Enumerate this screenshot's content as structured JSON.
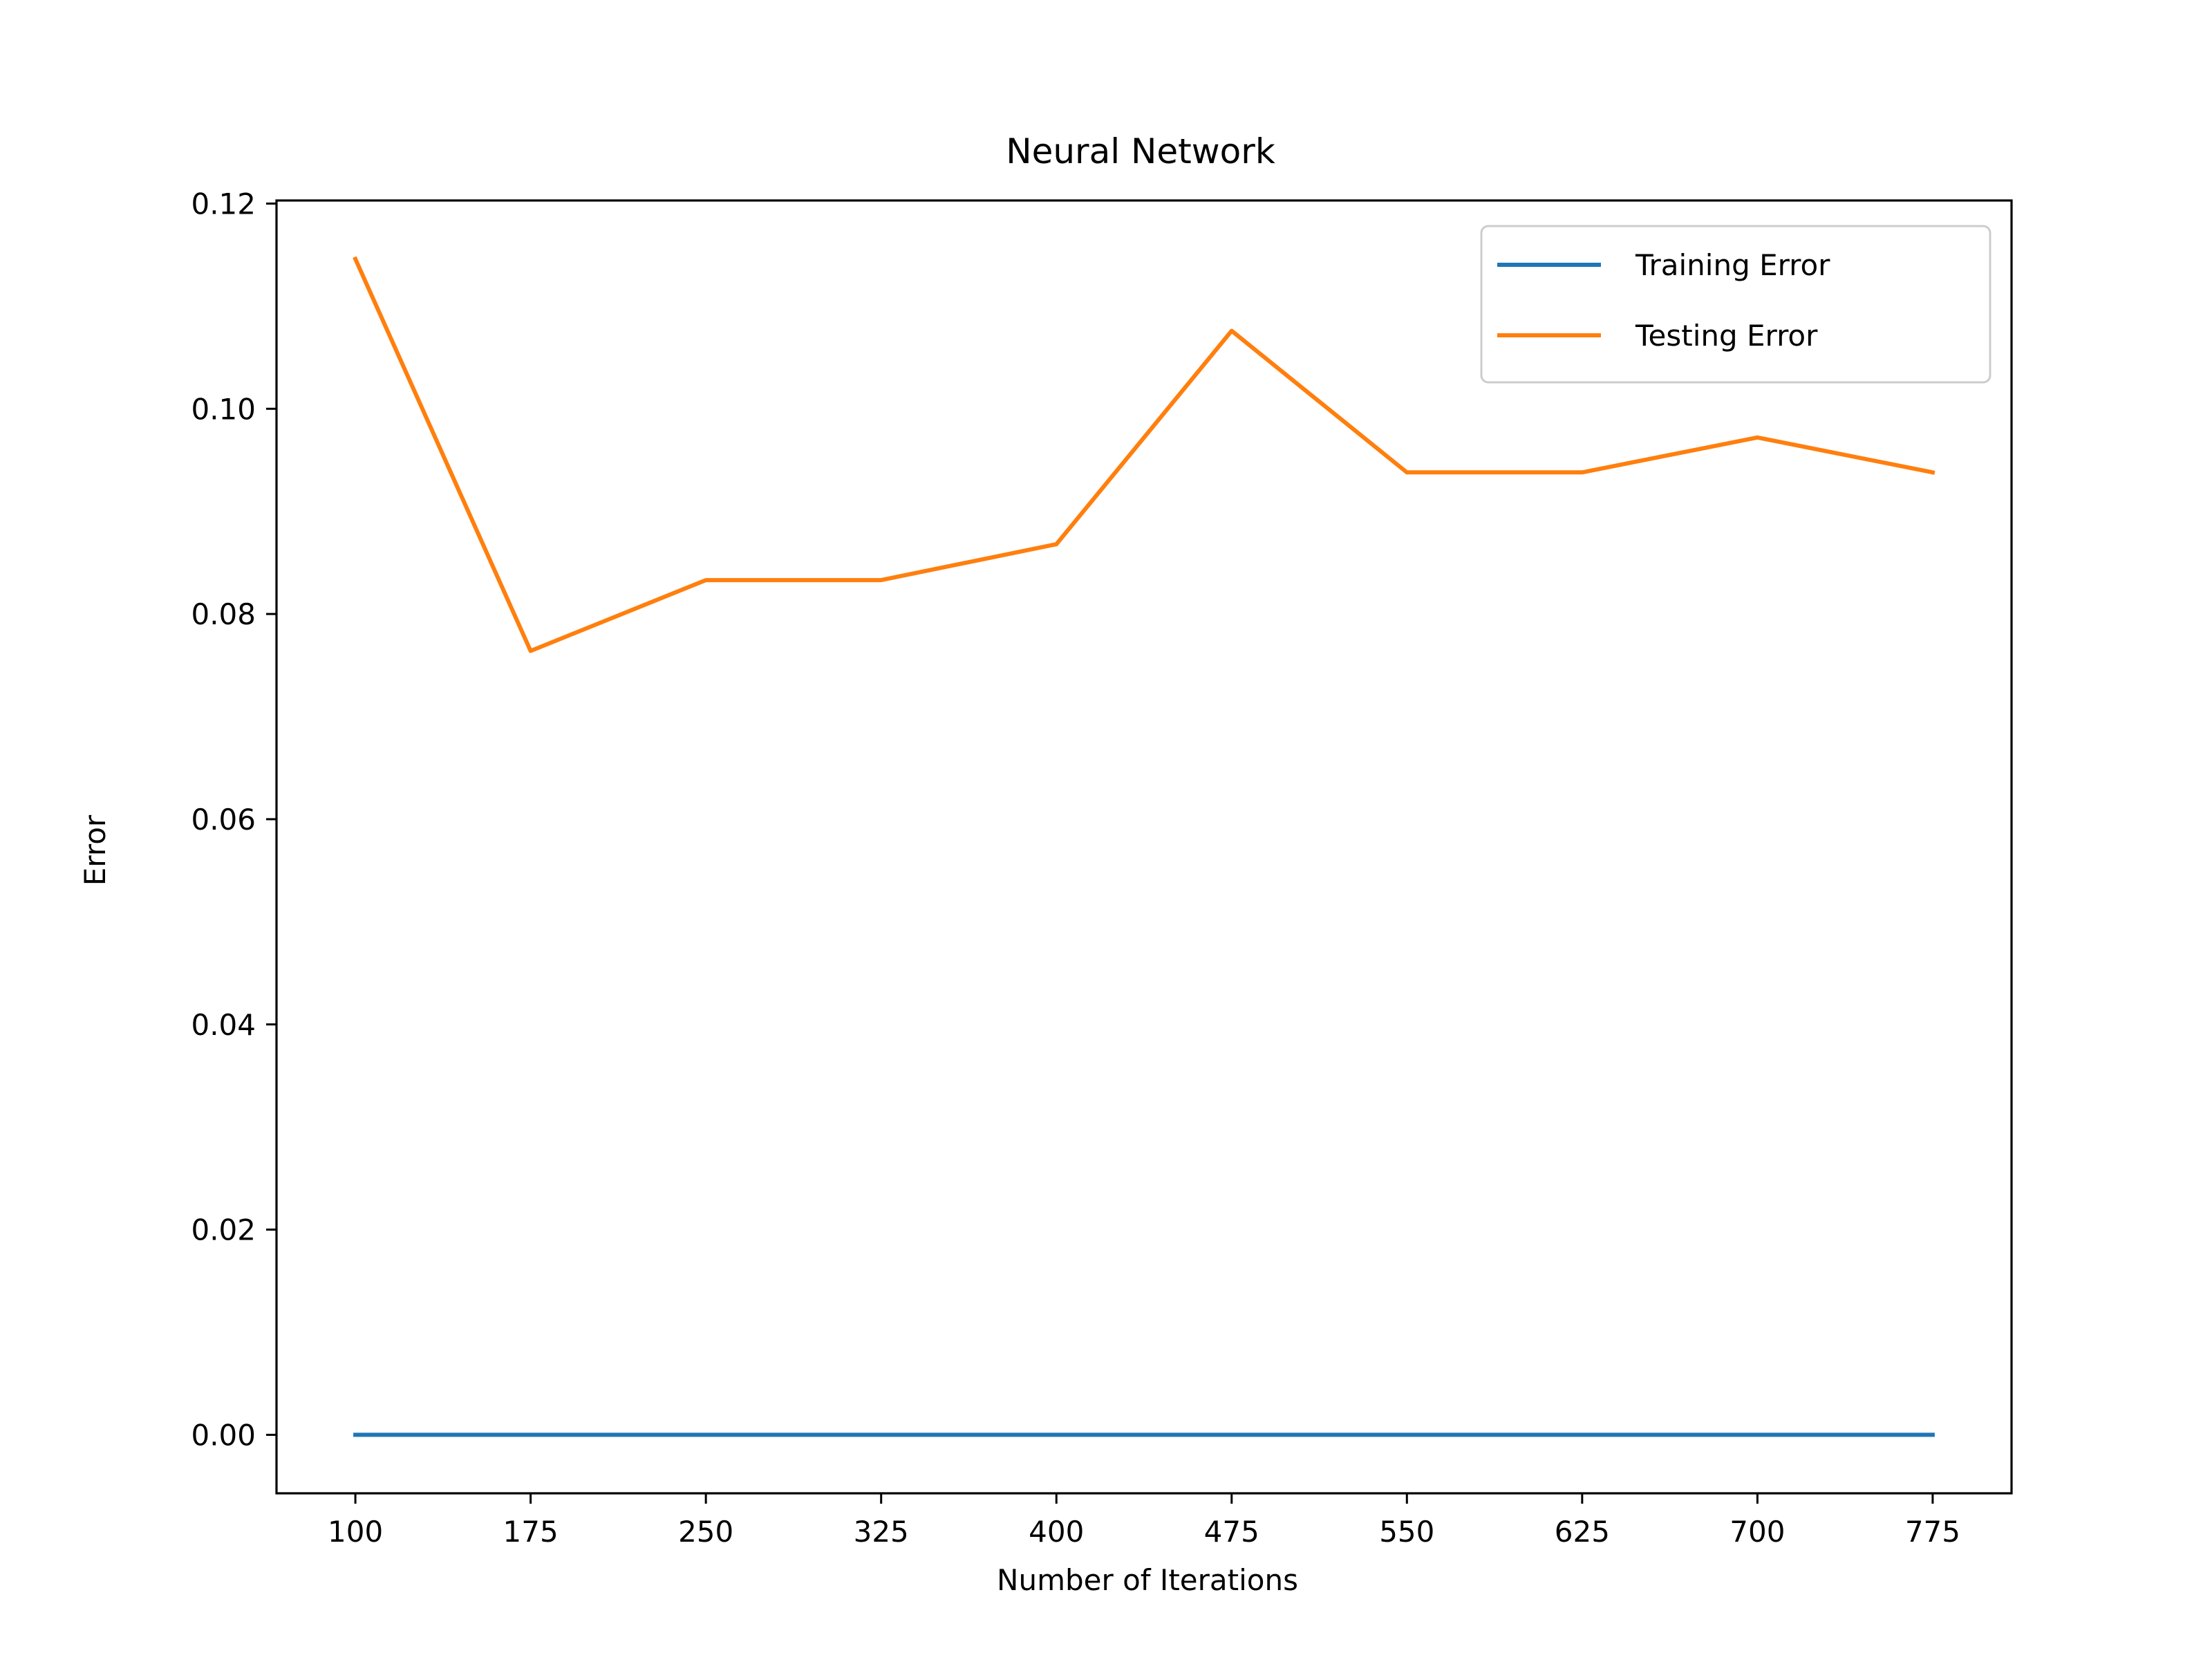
{
  "chart_data": {
    "type": "line",
    "title": "Neural Network",
    "xlabel": "Number of Iterations",
    "ylabel": "Error",
    "x": [
      100,
      175,
      250,
      325,
      400,
      475,
      550,
      625,
      700,
      775
    ],
    "xticks": [
      "100",
      "175",
      "250",
      "325",
      "400",
      "475",
      "550",
      "625",
      "700",
      "775"
    ],
    "yticks": [
      "0.00",
      "0.02",
      "0.04",
      "0.06",
      "0.08",
      "0.10",
      "0.12"
    ],
    "ylim": [
      -0.0057,
      0.1203
    ],
    "xlim": [
      66.25,
      808.75
    ],
    "grid": false,
    "legend_position": "upper right",
    "series": [
      {
        "name": "Training Error",
        "color": "#1f77b4",
        "values": [
          0,
          0,
          0,
          0,
          0,
          0,
          0,
          0,
          0,
          0
        ]
      },
      {
        "name": "Testing Error",
        "color": "#ff7f0e",
        "values": [
          0.1146,
          0.0764,
          0.0833,
          0.0833,
          0.0868,
          0.1076,
          0.0938,
          0.0938,
          0.0972,
          0.0938
        ]
      }
    ]
  }
}
